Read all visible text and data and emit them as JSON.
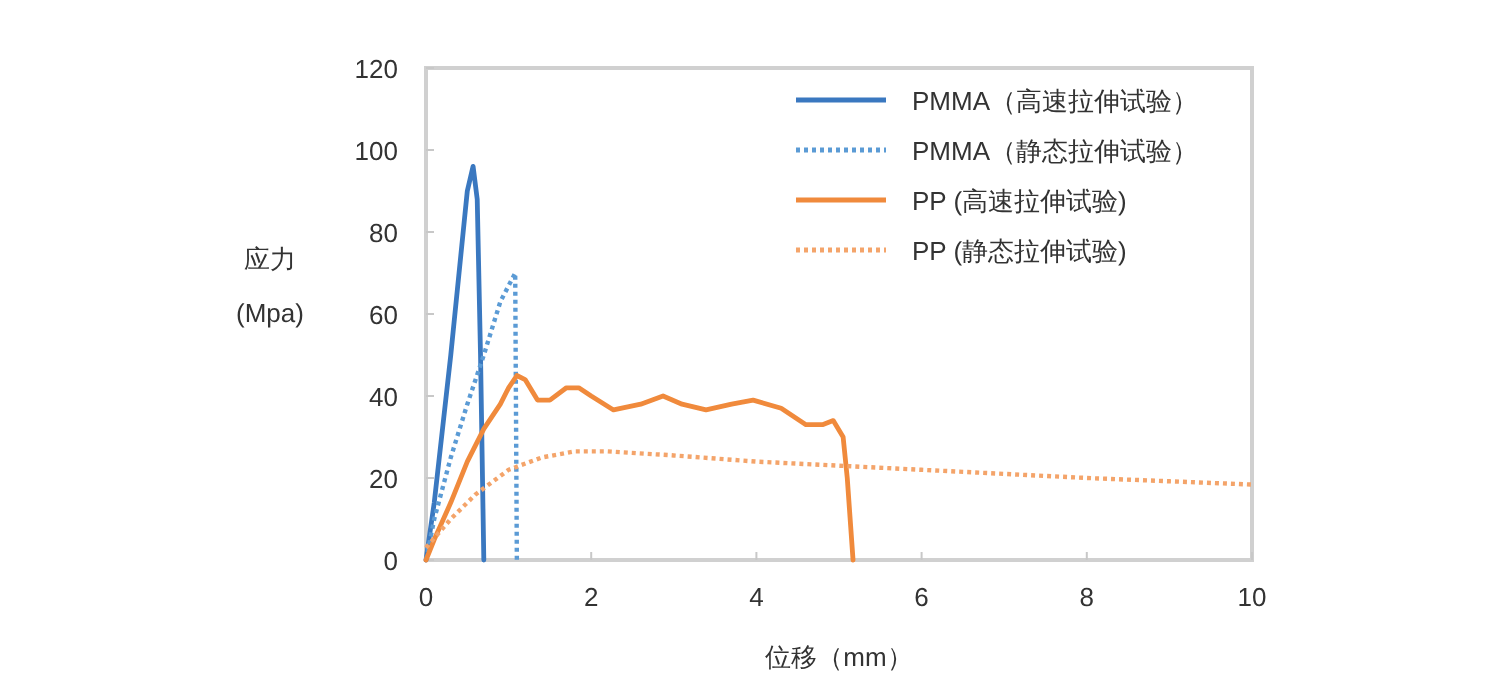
{
  "chart_data": {
    "type": "line",
    "xlabel": "位移（mm）",
    "ylabel": "应力\n(Mpa)",
    "xlim": [
      0,
      10
    ],
    "ylim": [
      0,
      120
    ],
    "xticks": [
      0,
      2,
      4,
      6,
      8,
      10
    ],
    "yticks": [
      0,
      20,
      40,
      60,
      80,
      100,
      120
    ],
    "grid": false,
    "legend": "top right",
    "marker": "none",
    "series": [
      {
        "name": "PMMA（高速拉伸试验）",
        "color": "#3a78c0",
        "line_style": "solid",
        "x": [
          0,
          0.1,
          0.2,
          0.3,
          0.4,
          0.5,
          0.57,
          0.62,
          0.66,
          0.7
        ],
        "values": [
          0,
          14,
          32,
          50,
          70,
          90,
          96,
          88,
          50,
          0
        ]
      },
      {
        "name": "PMMA（静态拉伸试验）",
        "color": "#5b9bd5",
        "line_style": "dotted",
        "x": [
          0,
          0.1,
          0.3,
          0.5,
          0.7,
          0.9,
          1.08,
          1.1
        ],
        "values": [
          0,
          10,
          25,
          38,
          50,
          63,
          70,
          0
        ]
      },
      {
        "name": "PP (高速拉伸试验)",
        "color": "#f08a3c",
        "line_style": "solid",
        "x": [
          0,
          0.1,
          0.3,
          0.5,
          0.7,
          0.9,
          1.0,
          1.1,
          1.2,
          1.35,
          1.5,
          1.7,
          1.85,
          2.0,
          2.27,
          2.6,
          2.87,
          3.1,
          3.39,
          3.7,
          3.96,
          4.3,
          4.6,
          4.8,
          4.93,
          5.05,
          5.1,
          5.17
        ],
        "values": [
          0,
          5,
          14,
          24,
          32,
          38,
          42,
          45,
          44,
          39,
          39,
          42,
          42,
          40,
          36.6,
          38,
          40,
          38,
          36.6,
          38,
          39,
          37,
          33,
          33,
          34,
          30,
          20,
          0
        ]
      },
      {
        "name": "PP (静态拉伸试验)",
        "color": "#f4a46a",
        "line_style": "dotted",
        "x": [
          0,
          0.3,
          0.6,
          1.0,
          1.4,
          1.8,
          2.2,
          3,
          4,
          5,
          6,
          7,
          8,
          9,
          10
        ],
        "values": [
          3,
          10,
          16,
          22,
          25,
          26.5,
          26.5,
          25.5,
          24,
          23,
          22,
          21,
          20,
          19.2,
          18.4
        ]
      }
    ]
  }
}
